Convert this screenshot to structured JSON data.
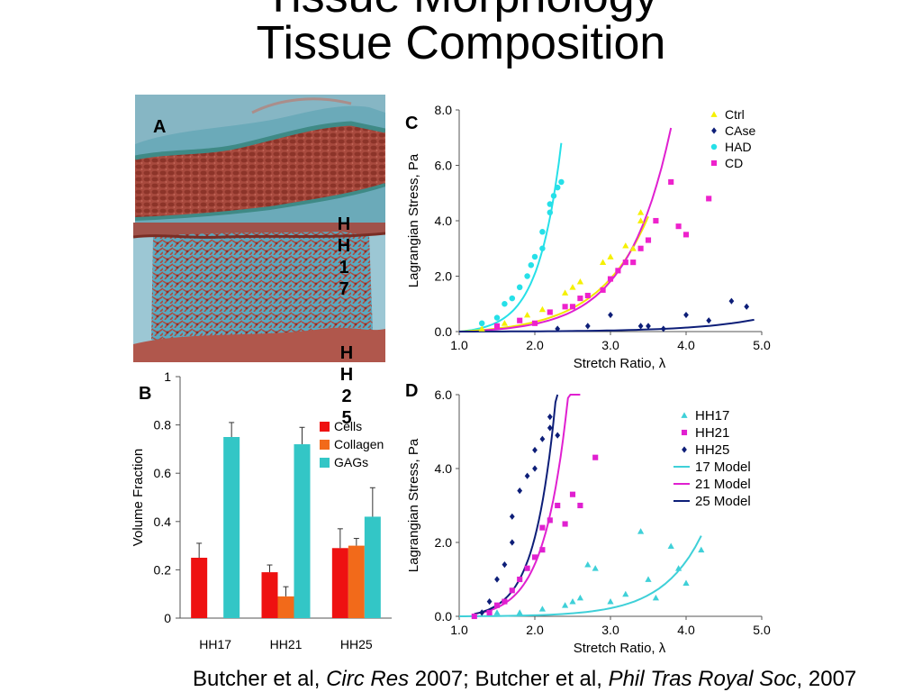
{
  "slide_title_line1": "Tissue Morphology",
  "slide_title_line2": "Tissue Composition",
  "panel_letters": {
    "a": "A",
    "b": "B",
    "c": "C",
    "d": "D"
  },
  "stage_labels": {
    "hh17": "HH17",
    "hh25": "HH25"
  },
  "citation": {
    "part1": "Butcher et al, ",
    "journal1": "Circ Res",
    "part2": " 2007; Butcher et al, ",
    "journal2": "Phil Tras Royal Soc",
    "part3": ", 2007"
  },
  "chart_data": [
    {
      "id": "B",
      "type": "bar",
      "categories": [
        "HH17",
        "HH21",
        "HH25"
      ],
      "ylabel": "Volume Fraction",
      "ylim": [
        0,
        1
      ],
      "yticks": [
        "0",
        "0.2",
        "0.4",
        "0.6",
        "0.8",
        "1"
      ],
      "legend_position": "top-right",
      "series": [
        {
          "name": "Cells",
          "color": "#ee1111",
          "values": [
            0.25,
            0.19,
            0.29
          ],
          "errors": [
            0.06,
            0.03,
            0.08
          ]
        },
        {
          "name": "Collagen",
          "color": "#f26a1a",
          "values": [
            null,
            0.09,
            0.3
          ],
          "errors": [
            null,
            0.04,
            0.03
          ]
        },
        {
          "name": "GAGs",
          "color": "#33c6c6",
          "values": [
            0.75,
            0.72,
            0.42
          ],
          "errors": [
            0.06,
            0.07,
            0.12
          ]
        }
      ]
    },
    {
      "id": "C",
      "type": "scatter",
      "xlabel": "Stretch Ratio, λ",
      "ylabel": "Lagrangian Stress, Pa",
      "xlim": [
        1.0,
        5.0
      ],
      "ylim": [
        0,
        8.0
      ],
      "xticks": [
        "1.0",
        "2.0",
        "3.0",
        "4.0",
        "5.0"
      ],
      "yticks": [
        "0.0",
        "2.0",
        "4.0",
        "6.0",
        "8.0"
      ],
      "legend_position": "top-right",
      "series": [
        {
          "name": "Ctrl",
          "marker": "triangle",
          "color": "#f5f000",
          "points": [
            [
              1.3,
              0.1
            ],
            [
              1.6,
              0.3
            ],
            [
              1.9,
              0.6
            ],
            [
              2.1,
              0.8
            ],
            [
              2.4,
              1.4
            ],
            [
              2.5,
              1.6
            ],
            [
              2.6,
              1.8
            ],
            [
              2.9,
              2.5
            ],
            [
              3.0,
              2.7
            ],
            [
              3.2,
              3.1
            ],
            [
              3.3,
              3.0
            ],
            [
              3.4,
              4.0
            ],
            [
              3.4,
              4.3
            ]
          ]
        },
        {
          "name": "CAse",
          "marker": "diamond",
          "color": "#0d1e78",
          "points": [
            [
              2.3,
              0.1
            ],
            [
              2.7,
              0.2
            ],
            [
              3.0,
              0.6
            ],
            [
              3.4,
              0.2
            ],
            [
              3.5,
              0.2
            ],
            [
              3.7,
              0.1
            ],
            [
              4.0,
              0.6
            ],
            [
              4.3,
              0.4
            ],
            [
              4.6,
              1.1
            ],
            [
              4.8,
              0.9
            ]
          ]
        },
        {
          "name": "HAD",
          "marker": "circle",
          "color": "#26e0e8",
          "points": [
            [
              1.3,
              0.3
            ],
            [
              1.5,
              0.5
            ],
            [
              1.6,
              1.0
            ],
            [
              1.7,
              1.2
            ],
            [
              1.8,
              1.6
            ],
            [
              1.9,
              2.0
            ],
            [
              1.95,
              2.4
            ],
            [
              2.0,
              2.7
            ],
            [
              2.1,
              3.0
            ],
            [
              2.1,
              3.6
            ],
            [
              2.2,
              4.3
            ],
            [
              2.2,
              4.6
            ],
            [
              2.25,
              4.9
            ],
            [
              2.3,
              5.2
            ],
            [
              2.35,
              5.4
            ]
          ]
        },
        {
          "name": "CD",
          "marker": "square",
          "color": "#ee22cc",
          "points": [
            [
              1.5,
              0.2
            ],
            [
              1.8,
              0.4
            ],
            [
              2.0,
              0.3
            ],
            [
              2.2,
              0.7
            ],
            [
              2.4,
              0.9
            ],
            [
              2.5,
              0.9
            ],
            [
              2.6,
              1.2
            ],
            [
              2.7,
              1.3
            ],
            [
              2.9,
              1.5
            ],
            [
              3.0,
              1.9
            ],
            [
              3.1,
              2.2
            ],
            [
              3.2,
              2.5
            ],
            [
              3.3,
              2.5
            ],
            [
              3.4,
              3.0
            ],
            [
              3.5,
              3.3
            ],
            [
              3.6,
              4.0
            ],
            [
              3.8,
              5.4
            ],
            [
              3.9,
              3.8
            ],
            [
              4.0,
              3.5
            ],
            [
              4.3,
              4.8
            ]
          ]
        }
      ],
      "fits": [
        {
          "color": "#26e0e8",
          "x0": 1.0,
          "x1": 2.35,
          "k": 3.3,
          "a": 0.08
        },
        {
          "color": "#f0e800",
          "x0": 1.0,
          "x1": 3.5,
          "k": 1.5,
          "a": 0.1
        },
        {
          "color": "#e020d0",
          "x0": 1.3,
          "x1": 3.8,
          "k": 1.72,
          "a": 0.06
        },
        {
          "color": "#0d1e78",
          "x0": 1.0,
          "x1": 4.9,
          "k": 1.2,
          "a": 0.004
        }
      ]
    },
    {
      "id": "D",
      "type": "scatter",
      "xlabel": "Stretch Ratio, λ",
      "ylabel": "Lagrangian Stress, Pa",
      "xlim": [
        1.0,
        5.0
      ],
      "ylim": [
        0,
        6.0
      ],
      "xticks": [
        "1.0",
        "2.0",
        "3.0",
        "4.0",
        "5.0"
      ],
      "yticks": [
        "0.0",
        "2.0",
        "4.0",
        "6.0"
      ],
      "legend_position": "top-right",
      "series": [
        {
          "name": "HH17",
          "marker": "triangle",
          "color": "#3fd0d8",
          "points": [
            [
              1.5,
              0.1
            ],
            [
              1.8,
              0.1
            ],
            [
              2.1,
              0.2
            ],
            [
              2.4,
              0.3
            ],
            [
              2.5,
              0.4
            ],
            [
              2.6,
              0.5
            ],
            [
              2.7,
              1.4
            ],
            [
              2.8,
              1.3
            ],
            [
              3.0,
              0.4
            ],
            [
              3.2,
              0.6
            ],
            [
              3.4,
              2.3
            ],
            [
              3.5,
              1.0
            ],
            [
              3.6,
              0.5
            ],
            [
              3.8,
              1.9
            ],
            [
              3.9,
              1.3
            ],
            [
              4.0,
              0.9
            ],
            [
              4.2,
              1.8
            ]
          ]
        },
        {
          "name": "HH21",
          "marker": "square",
          "color": "#e020d0",
          "points": [
            [
              1.2,
              0.0
            ],
            [
              1.4,
              0.1
            ],
            [
              1.5,
              0.3
            ],
            [
              1.6,
              0.4
            ],
            [
              1.7,
              0.7
            ],
            [
              1.8,
              1.0
            ],
            [
              1.9,
              1.3
            ],
            [
              2.0,
              1.6
            ],
            [
              2.1,
              1.8
            ],
            [
              2.1,
              2.4
            ],
            [
              2.2,
              2.6
            ],
            [
              2.3,
              3.0
            ],
            [
              2.4,
              2.5
            ],
            [
              2.5,
              3.3
            ],
            [
              2.6,
              3.0
            ],
            [
              2.8,
              4.3
            ]
          ]
        },
        {
          "name": "HH25",
          "marker": "diamond",
          "color": "#0d1e78",
          "points": [
            [
              1.3,
              0.1
            ],
            [
              1.4,
              0.4
            ],
            [
              1.5,
              1.0
            ],
            [
              1.6,
              1.4
            ],
            [
              1.7,
              2.0
            ],
            [
              1.7,
              2.7
            ],
            [
              1.8,
              3.4
            ],
            [
              1.9,
              3.8
            ],
            [
              2.0,
              4.0
            ],
            [
              2.0,
              4.5
            ],
            [
              2.1,
              4.8
            ],
            [
              2.2,
              5.1
            ],
            [
              2.2,
              5.4
            ],
            [
              2.3,
              4.9
            ]
          ]
        }
      ],
      "models": [
        {
          "name": "17 Model",
          "color": "#3fd0d8",
          "x0": 1.0,
          "x1": 4.2,
          "k": 1.9,
          "a": 0.005
        },
        {
          "name": "21 Model",
          "color": "#e020d0",
          "x0": 1.3,
          "x1": 2.6,
          "k": 3.2,
          "a": 0.06
        },
        {
          "name": "25 Model",
          "color": "#0d1e78",
          "x0": 1.2,
          "x1": 2.3,
          "k": 3.6,
          "a": 0.06
        }
      ]
    }
  ]
}
